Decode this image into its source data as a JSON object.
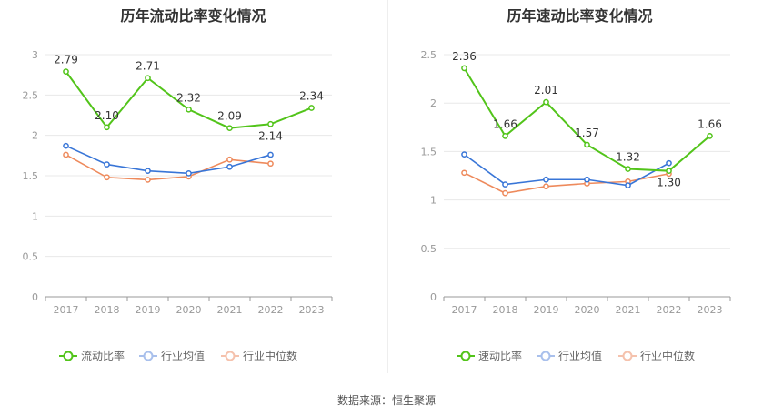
{
  "colors": {
    "main": "#52c41a",
    "avg": "#3875d7",
    "median": "#ee8a5c",
    "avg_legend": "#a9c0ec",
    "median_legend": "#f5c2ad"
  },
  "source": "数据来源：恒生聚源",
  "chart_data": [
    {
      "type": "line",
      "title": "历年流动比率变化情况",
      "xlabel": "",
      "ylabel": "",
      "categories": [
        "2017",
        "2018",
        "2019",
        "2020",
        "2021",
        "2022",
        "2023"
      ],
      "ylim": [
        0,
        3
      ],
      "yticks": [
        "0",
        "0.5",
        "1",
        "1.5",
        "2",
        "2.5",
        "3"
      ],
      "grid": true,
      "legend": "bottom",
      "series": [
        {
          "name": "流动比率",
          "values": [
            2.79,
            2.1,
            2.71,
            2.32,
            2.09,
            2.14,
            2.34
          ],
          "labels": [
            "2.79",
            "2.10",
            "2.71",
            "2.32",
            "2.09",
            "2.14",
            "2.34"
          ]
        },
        {
          "name": "行业均值",
          "values": [
            1.87,
            1.64,
            1.56,
            1.53,
            1.61,
            1.76,
            null
          ]
        },
        {
          "name": "行业中位数",
          "values": [
            1.76,
            1.48,
            1.45,
            1.49,
            1.7,
            1.65,
            null
          ]
        }
      ]
    },
    {
      "type": "line",
      "title": "历年速动比率变化情况",
      "xlabel": "",
      "ylabel": "",
      "categories": [
        "2017",
        "2018",
        "2019",
        "2020",
        "2021",
        "2022",
        "2023"
      ],
      "ylim": [
        0,
        2.5
      ],
      "yticks": [
        "0",
        "0.5",
        "1",
        "1.5",
        "2",
        "2.5"
      ],
      "grid": true,
      "legend": "bottom",
      "series": [
        {
          "name": "速动比率",
          "values": [
            2.36,
            1.66,
            2.01,
            1.57,
            1.32,
            1.3,
            1.66
          ],
          "labels": [
            "2.36",
            "1.66",
            "2.01",
            "1.57",
            "1.32",
            "1.30",
            "1.66"
          ]
        },
        {
          "name": "行业均值",
          "values": [
            1.47,
            1.16,
            1.21,
            1.21,
            1.15,
            1.38,
            null
          ]
        },
        {
          "name": "行业中位数",
          "values": [
            1.28,
            1.07,
            1.14,
            1.17,
            1.19,
            1.27,
            null
          ]
        }
      ]
    }
  ]
}
